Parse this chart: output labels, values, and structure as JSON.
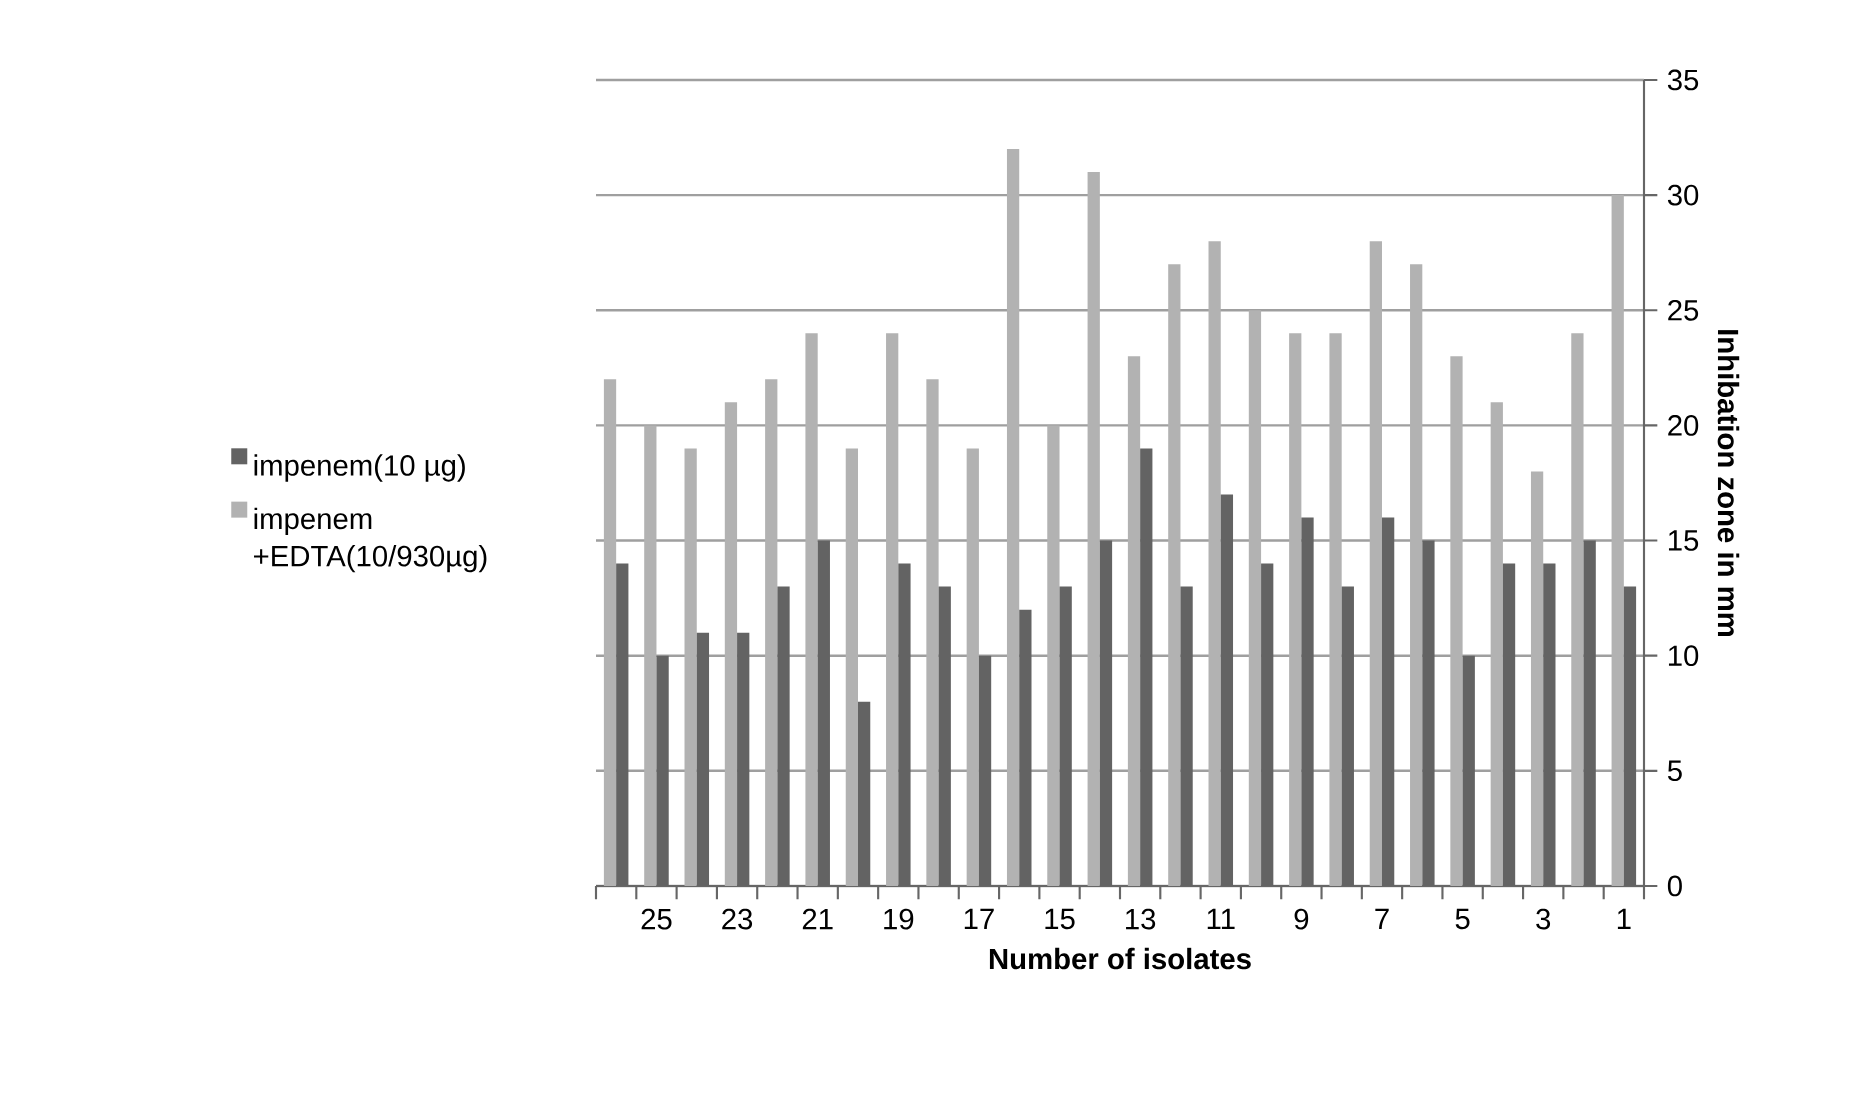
{
  "chart_data": {
    "type": "bar",
    "xlabel": "Number of isolates",
    "ylabel": "Inhibation  zone in mm",
    "categories": [
      null,
      "25",
      null,
      "23",
      null,
      "21",
      null,
      "19",
      null,
      "17",
      null,
      "15",
      null,
      "13",
      null,
      "11",
      null,
      "9",
      null,
      "7",
      null,
      "5",
      null,
      "3",
      null,
      "1"
    ],
    "series": [
      {
        "name": "impenem(10 µg)",
        "color": "#636363",
        "values": [
          14,
          10,
          11,
          11,
          13,
          15,
          8,
          14,
          13,
          10,
          12,
          13,
          15,
          19,
          13,
          17,
          14,
          16,
          13,
          16,
          15,
          10,
          14,
          14,
          15,
          13
        ]
      },
      {
        "name": "impenem +EDTA(10/930µg)",
        "color": "#b2b2b2",
        "values": [
          22,
          20,
          19,
          21,
          22,
          24,
          19,
          24,
          22,
          19,
          32,
          20,
          31,
          23,
          27,
          28,
          25,
          24,
          24,
          28,
          27,
          23,
          21,
          18,
          24,
          30
        ]
      }
    ],
    "ylim": [
      0,
      35
    ],
    "yticks": [
      0,
      5,
      10,
      15,
      20,
      25,
      30,
      35
    ],
    "grid": "y",
    "legend": "left"
  }
}
